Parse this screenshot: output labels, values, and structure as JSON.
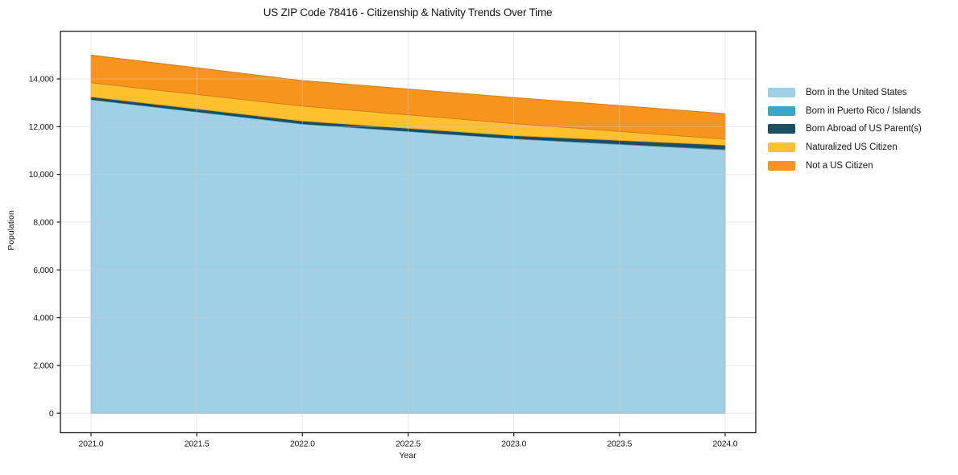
{
  "chart_data": {
    "type": "area",
    "stacked": true,
    "title": "US ZIP Code 78416 - Citizenship & Nativity Trends Over Time",
    "xlabel": "Year",
    "ylabel": "Population",
    "x": [
      2021,
      2022,
      2023,
      2024
    ],
    "series": [
      {
        "name": "Born in the United States",
        "color": "#9fd0e6",
        "values": [
          13130,
          12110,
          11490,
          11030
        ]
      },
      {
        "name": "Born in Puerto Rico / Islands",
        "color": "#3ba6c6",
        "values": [
          20,
          25,
          25,
          40
        ]
      },
      {
        "name": "Born Abroad of US Parent(s)",
        "color": "#1d4f63",
        "values": [
          100,
          105,
          110,
          160
        ]
      },
      {
        "name": "Naturalized US Citizen",
        "color": "#fcc12d",
        "values": [
          590,
          620,
          505,
          245
        ]
      },
      {
        "name": "Not a US Citizen",
        "color": "#f7941e",
        "values": [
          1160,
          1070,
          1090,
          1070
        ]
      }
    ],
    "totals": [
      15000,
      13930,
      13220,
      12545
    ],
    "xlim": [
      2020.855,
      2024.145
    ],
    "ylim": [
      -820,
      15990
    ],
    "xticks": [
      2021.0,
      2021.5,
      2022.0,
      2022.5,
      2023.0,
      2023.5,
      2024.0
    ],
    "xtick_labels": [
      "2021.0",
      "2021.5",
      "2022.0",
      "2022.5",
      "2023.0",
      "2023.5",
      "2024.0"
    ],
    "yticks": [
      0,
      2000,
      4000,
      6000,
      8000,
      10000,
      12000,
      14000
    ],
    "ytick_labels": [
      "0",
      "2,000",
      "4,000",
      "6,000",
      "8,000",
      "10,000",
      "12,000",
      "14,000"
    ],
    "grid": true,
    "gridline_color": "#cccccc",
    "spine_color": "#1a1a1a",
    "text_color": "#151515",
    "legend_position": "outside-right"
  }
}
